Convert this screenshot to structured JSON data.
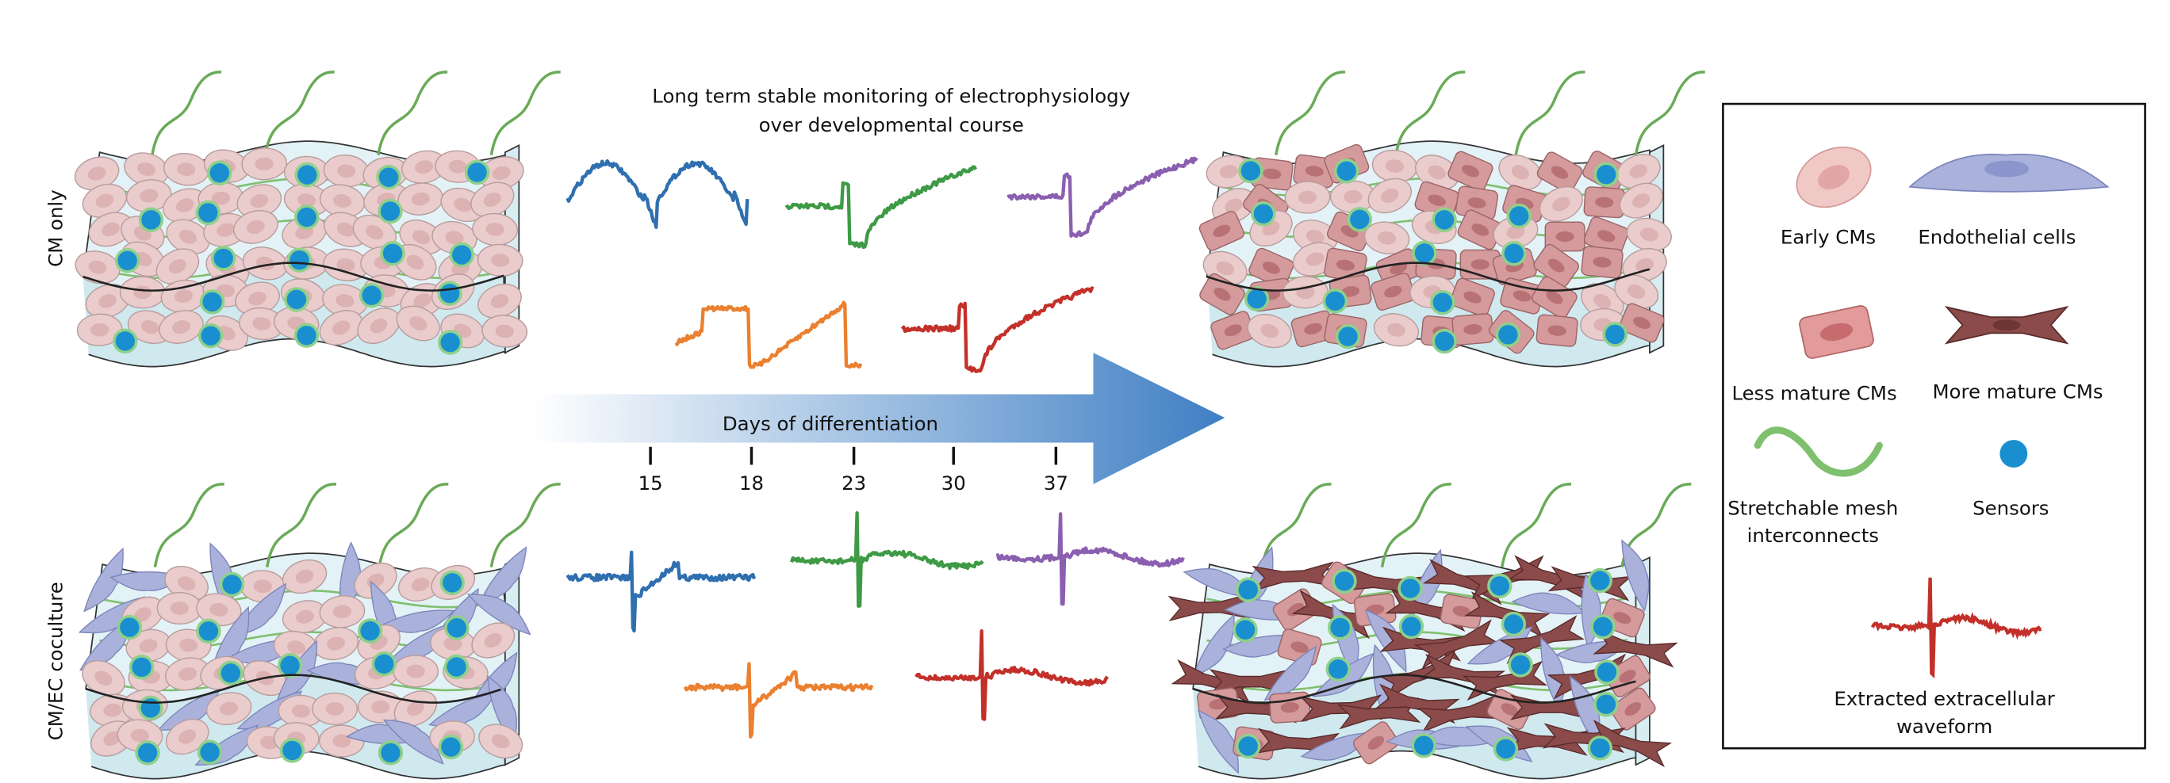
{
  "title": [
    "Long term stable monitoring of electrophysiology",
    "over developmental course"
  ],
  "rows": [
    "CM only",
    "CM/EC coculture"
  ],
  "timeline": {
    "label": "Days of differentiation",
    "days": [
      "15",
      "18",
      "23",
      "30",
      "37"
    ]
  },
  "legend": [
    {
      "label": [
        "Early CMs"
      ]
    },
    {
      "label": [
        "Endothelial cells"
      ]
    },
    {
      "label": [
        "Less mature CMs"
      ]
    },
    {
      "label": [
        "More mature CMs"
      ]
    },
    {
      "label": [
        "Stretchable mesh",
        "interconnects"
      ]
    },
    {
      "label": [
        "Sensors"
      ]
    },
    {
      "label": [
        "Extracted extracellular",
        "waveform"
      ]
    }
  ]
}
